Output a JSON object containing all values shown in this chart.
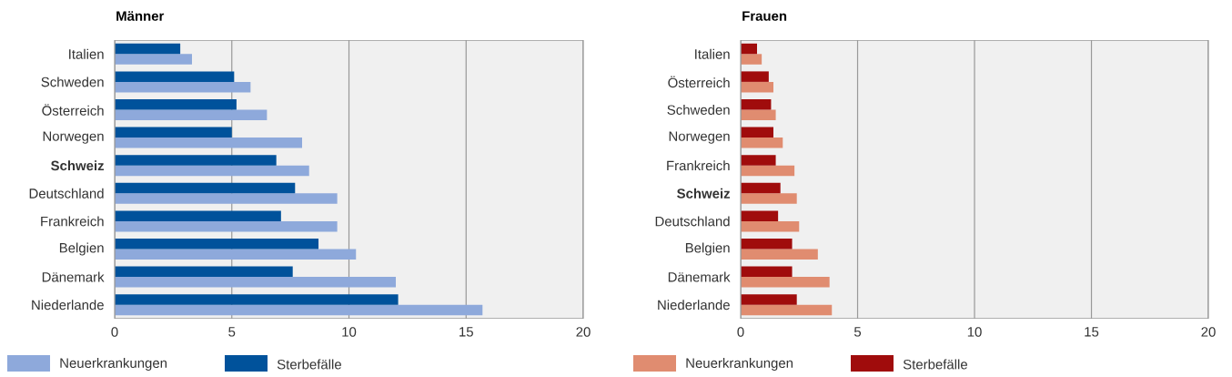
{
  "chart_data": [
    {
      "type": "bar",
      "orientation": "horizontal",
      "title": "Männer",
      "categories": [
        "Italien",
        "Schweden",
        "Österreich",
        "Norwegen",
        "**Schweiz**",
        "Deutschland",
        "Frankreich",
        "Belgien",
        "Dänemark",
        "Niederlande"
      ],
      "series": [
        {
          "name": "Neuerkrankungen",
          "color": "#8ea9db",
          "values": [
            3.3,
            5.8,
            6.5,
            8.0,
            8.3,
            9.5,
            9.5,
            10.3,
            12.0,
            15.7
          ]
        },
        {
          "name": "Sterbefälle",
          "color": "#00529b",
          "values": [
            2.8,
            5.1,
            5.2,
            5.0,
            6.9,
            7.7,
            7.1,
            8.7,
            7.6,
            12.1
          ]
        }
      ],
      "xlim": [
        0,
        20
      ],
      "xticks": [
        0,
        5,
        10,
        15,
        20
      ],
      "grid": "x",
      "legend": "bottom left"
    },
    {
      "type": "bar",
      "orientation": "horizontal",
      "title": "Frauen",
      "categories": [
        "Italien",
        "Österreich",
        "Schweden",
        "Norwegen",
        "Frankreich",
        "**Schweiz**",
        "Deutschland",
        "Belgien",
        "Dänemark",
        "Niederlande"
      ],
      "series": [
        {
          "name": "Neuerkrankungen",
          "color": "#e08c70",
          "values": [
            0.9,
            1.4,
            1.5,
            1.8,
            2.3,
            2.4,
            2.5,
            3.3,
            3.8,
            3.9
          ]
        },
        {
          "name": "Sterbefälle",
          "color": "#a00c0c",
          "values": [
            0.7,
            1.2,
            1.3,
            1.4,
            1.5,
            1.7,
            1.6,
            2.2,
            2.2,
            2.4
          ]
        }
      ],
      "xlim": [
        0,
        20
      ],
      "xticks": [
        0,
        5,
        10,
        15,
        20
      ],
      "grid": "x",
      "legend": "bottom left"
    }
  ]
}
